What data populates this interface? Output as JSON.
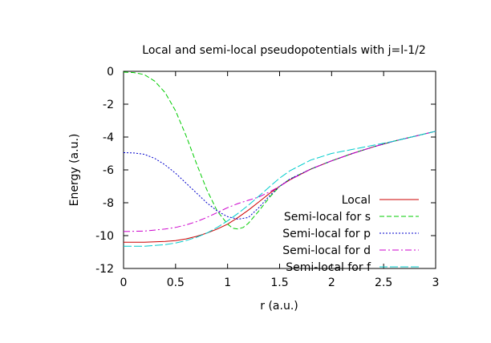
{
  "chart_data": {
    "type": "line",
    "title": "Local and semi-local pseudopotentials with j=l-1/2",
    "xlabel": "r (a.u.)",
    "ylabel": "Energy (a.u.)",
    "xlim": [
      0,
      3
    ],
    "ylim": [
      -12,
      0
    ],
    "xticks": [
      0,
      0.5,
      1,
      1.5,
      2,
      2.5,
      3
    ],
    "xtick_labels": [
      "0",
      "0.5",
      "1",
      "1.5",
      "2",
      "2.5",
      "3"
    ],
    "yticks": [
      0,
      -2,
      -4,
      -6,
      -8,
      -10,
      -12
    ],
    "ytick_labels": [
      "0",
      "-2",
      "-4",
      "-6",
      "-8",
      "-10",
      "-12"
    ],
    "grid": false,
    "legend_position": "bottom-right",
    "series": [
      {
        "name": "Local",
        "color": "#cc0000",
        "dash": "solid",
        "x": [
          0,
          0.2,
          0.4,
          0.5,
          0.6,
          0.7,
          0.8,
          0.9,
          1.0,
          1.1,
          1.2,
          1.3,
          1.4,
          1.5,
          1.6,
          1.8,
          2.0,
          2.2,
          2.4,
          2.6,
          2.8,
          3.0
        ],
        "y": [
          -10.4,
          -10.4,
          -10.35,
          -10.3,
          -10.2,
          -10.05,
          -9.85,
          -9.6,
          -9.3,
          -8.9,
          -8.45,
          -7.95,
          -7.45,
          -7.0,
          -6.6,
          -5.95,
          -5.45,
          -5.0,
          -4.6,
          -4.25,
          -3.95,
          -3.65
        ]
      },
      {
        "name": "Semi-local for s",
        "color": "#00cc00",
        "dash": "dashed",
        "x": [
          0,
          0.1,
          0.2,
          0.3,
          0.4,
          0.5,
          0.6,
          0.7,
          0.8,
          0.9,
          1.0,
          1.05,
          1.1,
          1.15,
          1.2,
          1.3,
          1.4,
          1.5,
          1.6,
          1.8,
          2.0,
          2.2,
          2.4,
          2.6,
          2.8,
          3.0
        ],
        "y": [
          -0.05,
          -0.08,
          -0.2,
          -0.6,
          -1.3,
          -2.4,
          -3.9,
          -5.6,
          -7.2,
          -8.5,
          -9.3,
          -9.55,
          -9.6,
          -9.5,
          -9.25,
          -8.5,
          -7.7,
          -7.0,
          -6.55,
          -5.95,
          -5.45,
          -5.0,
          -4.6,
          -4.25,
          -3.95,
          -3.65
        ]
      },
      {
        "name": "Semi-local for p",
        "color": "#0000cc",
        "dash": "dotted",
        "x": [
          0,
          0.1,
          0.2,
          0.3,
          0.4,
          0.5,
          0.6,
          0.7,
          0.8,
          0.9,
          1.0,
          1.1,
          1.2,
          1.3,
          1.4,
          1.5,
          1.6,
          1.8,
          2.0,
          2.2,
          2.4,
          2.6,
          2.8,
          3.0
        ],
        "y": [
          -4.95,
          -4.97,
          -5.05,
          -5.3,
          -5.7,
          -6.2,
          -6.8,
          -7.4,
          -8.0,
          -8.5,
          -8.85,
          -9.0,
          -8.9,
          -8.3,
          -7.6,
          -7.0,
          -6.55,
          -5.95,
          -5.45,
          -5.0,
          -4.6,
          -4.25,
          -3.95,
          -3.65
        ]
      },
      {
        "name": "Semi-local for d",
        "color": "#cc00cc",
        "dash": "dashdot",
        "x": [
          0,
          0.2,
          0.4,
          0.5,
          0.6,
          0.7,
          0.8,
          0.9,
          1.0,
          1.1,
          1.2,
          1.3,
          1.4,
          1.5,
          1.6,
          1.8,
          2.0,
          2.2,
          2.4,
          2.6,
          2.8,
          3.0
        ],
        "y": [
          -9.75,
          -9.72,
          -9.6,
          -9.5,
          -9.35,
          -9.15,
          -8.9,
          -8.6,
          -8.3,
          -8.05,
          -7.85,
          -7.65,
          -7.35,
          -7.0,
          -6.6,
          -5.95,
          -5.45,
          -5.0,
          -4.6,
          -4.25,
          -3.95,
          -3.65
        ]
      },
      {
        "name": "Semi-local for f",
        "color": "#00cccc",
        "dash": "longdash",
        "x": [
          0,
          0.2,
          0.4,
          0.5,
          0.6,
          0.7,
          0.8,
          0.9,
          1.0,
          1.1,
          1.2,
          1.3,
          1.4,
          1.5,
          1.6,
          1.8,
          2.0,
          2.2,
          2.4,
          2.6,
          2.8,
          3.0
        ],
        "y": [
          -10.65,
          -10.65,
          -10.55,
          -10.45,
          -10.3,
          -10.1,
          -9.85,
          -9.5,
          -9.1,
          -8.65,
          -8.15,
          -7.6,
          -7.05,
          -6.5,
          -6.05,
          -5.4,
          -5.0,
          -4.75,
          -4.5,
          -4.25,
          -3.95,
          -3.65
        ]
      }
    ]
  }
}
